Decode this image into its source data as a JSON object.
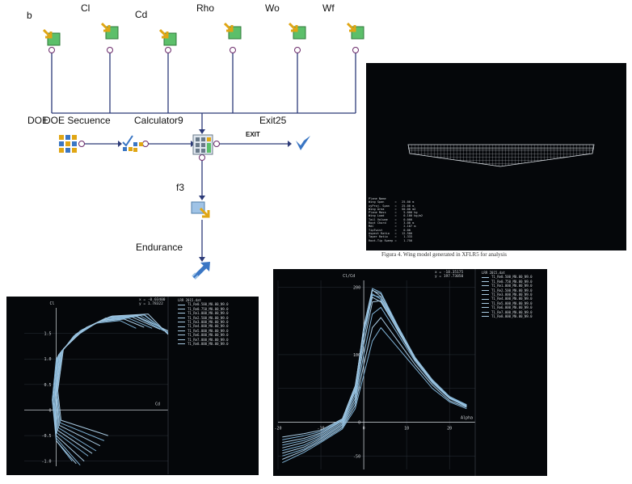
{
  "workflow": {
    "inputs": [
      {
        "name": "b"
      },
      {
        "name": "Cl"
      },
      {
        "name": "Cd"
      },
      {
        "name": "Rho"
      },
      {
        "name": "Wo"
      },
      {
        "name": "Wf"
      }
    ],
    "nodes": {
      "doe": "DOE",
      "doe_sequence": "DOE Secuence",
      "calculator": "Calculator9",
      "exit": "Exit25",
      "exit_edge": "EXIT",
      "f3": "f3",
      "endurance": "Endurance"
    }
  },
  "wing_view": {
    "caption": "Figura 4. Wing model generated in XFLR5 for analysis",
    "colors": {
      "bg": "#05070a",
      "mesh": "#c9ced4"
    },
    "stats": [
      "Plane Name",
      "Wing Span      =   25.00 m",
      "xyProj. Span   =   25.00 m",
      "Wing Area      =   50.00 m2",
      "Plane Mass     =    5.000 kg",
      "Wing Load      =    0.100 kg/m2",
      "Tail Volume    =    0.000",
      "Root Chord     =    3.00 m",
      "MAC            =    2.107 m",
      "TipTwist       =    0.00",
      "Aspect Ratio   =   12.500",
      "Taper Ratio    =    1.333",
      "Root-Tip Sweep =    1.750"
    ]
  },
  "chart_data": [
    {
      "type": "line",
      "ylabel": "Cl",
      "xlabel": "Cd",
      "readout": [
        "x = -0.03400",
        "y =  1.78322"
      ],
      "legend_title": "LRR 2015.dat",
      "yticks": [
        "1.5",
        "1.0",
        "0.5",
        "0",
        "-0.5",
        "-1.0"
      ],
      "xlim": [
        -0.04,
        0.14
      ],
      "ylim": [
        -1.1,
        2.0
      ],
      "series": [
        {
          "name": "T1_Re0.500_M0.00_N9.0",
          "x": [
            0.02,
            0.0,
            -0.005,
            0.0,
            0.02,
            0.05,
            0.08,
            0.1
          ],
          "y": [
            -1.0,
            -0.6,
            0.2,
            1.0,
            1.4,
            1.7,
            1.75,
            1.6
          ]
        },
        {
          "name": "T1_Re0.750_M0.00_N9.0",
          "x": [
            0.025,
            0.0,
            -0.004,
            0.001,
            0.022,
            0.052,
            0.085,
            0.11
          ],
          "y": [
            -1.05,
            -0.6,
            0.2,
            1.02,
            1.45,
            1.72,
            1.78,
            1.62
          ]
        },
        {
          "name": "T1_Re1.000_M0.00_N9.0",
          "x": [
            0.03,
            0.0,
            -0.003,
            0.002,
            0.024,
            0.055,
            0.09,
            0.12
          ],
          "y": [
            -1.08,
            -0.55,
            0.22,
            1.05,
            1.48,
            1.74,
            1.8,
            1.6
          ]
        },
        {
          "name": "T1_Re2.500_M0.00_N9.0",
          "x": [
            0.035,
            0.0,
            -0.002,
            0.003,
            0.026,
            0.058,
            0.095,
            0.13
          ],
          "y": [
            -1.0,
            -0.5,
            0.25,
            1.08,
            1.5,
            1.76,
            1.82,
            1.58
          ]
        },
        {
          "name": "T1_Re3.000_M0.00_N9.0",
          "x": [
            0.04,
            0.001,
            -0.002,
            0.004,
            0.028,
            0.06,
            0.1,
            0.135
          ],
          "y": [
            -0.9,
            -0.45,
            0.28,
            1.1,
            1.52,
            1.78,
            1.83,
            1.55
          ]
        },
        {
          "name": "T1_Re4.000_M0.00_N9.0",
          "x": [
            0.045,
            0.002,
            -0.001,
            0.005,
            0.03,
            0.062,
            0.1,
            0.14
          ],
          "y": [
            -0.85,
            -0.4,
            0.3,
            1.12,
            1.55,
            1.8,
            1.84,
            1.55
          ]
        },
        {
          "name": "T1_Re5.000_M0.00_N9.0",
          "x": [
            0.05,
            0.003,
            0.0,
            0.006,
            0.032,
            0.065,
            0.105,
            0.14
          ],
          "y": [
            -0.8,
            -0.35,
            0.32,
            1.14,
            1.57,
            1.81,
            1.85,
            1.52
          ]
        },
        {
          "name": "T1_Re6.000_M0.00_N9.0",
          "x": [
            0.055,
            0.004,
            0.0,
            0.007,
            0.034,
            0.066,
            0.11,
            0.14
          ],
          "y": [
            -0.7,
            -0.3,
            0.34,
            1.16,
            1.58,
            1.82,
            1.86,
            1.5
          ]
        },
        {
          "name": "T1_Re7.000_M0.00_N9.0",
          "x": [
            0.06,
            0.005,
            0.001,
            0.008,
            0.036,
            0.068,
            0.11,
            0.14
          ],
          "y": [
            -0.6,
            -0.25,
            0.36,
            1.18,
            1.6,
            1.83,
            1.87,
            1.5
          ]
        },
        {
          "name": "T1_Re8.000_M0.00_N9.0",
          "x": [
            0.065,
            0.006,
            0.002,
            0.009,
            0.038,
            0.07,
            0.115,
            0.14
          ],
          "y": [
            -0.5,
            -0.2,
            0.38,
            1.2,
            1.62,
            1.84,
            1.88,
            1.48
          ]
        }
      ]
    },
    {
      "type": "line",
      "ylabel": "Cl/Cd",
      "xlabel": "Alpha",
      "readout": [
        "x = -18.35175",
        "y = 197.73050"
      ],
      "legend_title": "LRR 2015.dat",
      "yticks": [
        "200",
        "100",
        "50",
        "0",
        "-50"
      ],
      "xticks": [
        "-20",
        "-10",
        "0",
        "10",
        "20"
      ],
      "xlim": [
        -20,
        26
      ],
      "ylim": [
        -70,
        210
      ],
      "series": [
        {
          "name": "T1_Re0.500_M0.00_N9.0",
          "x": [
            -19,
            -14,
            -10,
            -5,
            -2,
            0,
            2,
            4,
            8,
            12,
            16,
            20,
            24
          ],
          "y": [
            -60,
            -45,
            -30,
            -10,
            20,
            70,
            120,
            140,
            110,
            80,
            50,
            30,
            20
          ]
        },
        {
          "name": "T1_Re0.750_M0.00_N9.0",
          "x": [
            -19,
            -14,
            -10,
            -5,
            -2,
            0,
            2,
            4,
            8,
            12,
            16,
            20,
            24
          ],
          "y": [
            -55,
            -42,
            -28,
            -8,
            25,
            85,
            140,
            155,
            120,
            85,
            55,
            32,
            22
          ]
        },
        {
          "name": "T1_Re1.000_M0.00_N9.0",
          "x": [
            -19,
            -14,
            -10,
            -5,
            -2,
            0,
            2,
            4,
            8,
            12,
            16,
            20,
            24
          ],
          "y": [
            -50,
            -40,
            -26,
            -6,
            30,
            100,
            160,
            170,
            130,
            90,
            58,
            35,
            23
          ]
        },
        {
          "name": "T1_Re2.500_M0.00_N9.0",
          "x": [
            -19,
            -14,
            -10,
            -5,
            -2,
            0,
            2,
            4,
            8,
            12,
            16,
            20,
            24
          ],
          "y": [
            -46,
            -37,
            -24,
            -4,
            35,
            115,
            178,
            180,
            135,
            92,
            60,
            36,
            24
          ]
        },
        {
          "name": "T1_Re3.000_M0.00_N9.0",
          "x": [
            -19,
            -14,
            -10,
            -5,
            -2,
            0,
            2,
            4,
            8,
            12,
            16,
            20,
            24
          ],
          "y": [
            -42,
            -34,
            -22,
            -2,
            40,
            125,
            188,
            185,
            138,
            94,
            61,
            37,
            25
          ]
        },
        {
          "name": "T1_Re4.000_M0.00_N9.0",
          "x": [
            -19,
            -14,
            -10,
            -5,
            -2,
            0,
            2,
            4,
            8,
            12,
            16,
            20,
            24
          ],
          "y": [
            -38,
            -30,
            -20,
            0,
            45,
            135,
            195,
            190,
            140,
            95,
            62,
            38,
            25
          ]
        },
        {
          "name": "T1_Re5.000_M0.00_N9.0",
          "x": [
            -19,
            -14,
            -10,
            -5,
            -2,
            0,
            2,
            4,
            8,
            12,
            16,
            20,
            24
          ],
          "y": [
            -34,
            -27,
            -18,
            2,
            48,
            140,
            198,
            192,
            142,
            96,
            63,
            38,
            26
          ]
        },
        {
          "name": "T1_Re6.000_M0.00_N9.0",
          "x": [
            -19,
            -14,
            -10,
            -5,
            -2,
            0,
            2,
            4,
            8,
            12,
            16,
            20,
            24
          ],
          "y": [
            -30,
            -24,
            -16,
            3,
            50,
            142,
            196,
            186,
            140,
            95,
            62,
            37,
            25
          ]
        },
        {
          "name": "T1_Re7.000_M0.00_N9.0",
          "x": [
            -19,
            -14,
            -10,
            -5,
            -2,
            0,
            2,
            4,
            8,
            12,
            16,
            20,
            24
          ],
          "y": [
            -26,
            -20,
            -14,
            4,
            52,
            138,
            190,
            182,
            138,
            94,
            61,
            37,
            25
          ]
        },
        {
          "name": "T1_Re8.000_M0.00_N9.0",
          "x": [
            -19,
            -14,
            -10,
            -5,
            -2,
            0,
            2,
            4,
            8,
            12,
            16,
            20,
            24
          ],
          "y": [
            -22,
            -17,
            -12,
            5,
            54,
            135,
            185,
            178,
            136,
            93,
            60,
            36,
            24
          ]
        }
      ]
    }
  ],
  "colors": {
    "curve": "#7fb2d6",
    "curve_light": "#a9cbe3",
    "axis": "#d9dde2",
    "grid": "#2a3038",
    "text": "#d0d4d8",
    "wire": "#2c3a78",
    "accent": "#3a76c4"
  }
}
